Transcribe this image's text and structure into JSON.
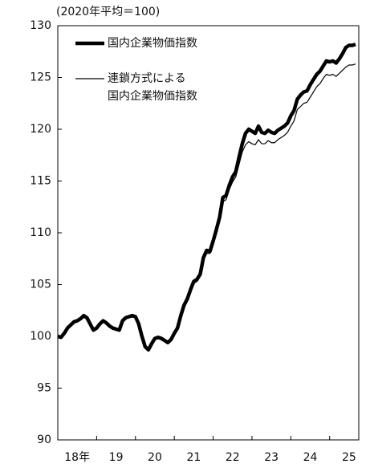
{
  "chart_data": {
    "type": "line",
    "subtitle": "(2020年平均＝100)",
    "x": [
      2018.0,
      2018.083,
      2018.167,
      2018.25,
      2018.333,
      2018.417,
      2018.5,
      2018.583,
      2018.667,
      2018.75,
      2018.833,
      2018.917,
      2019.0,
      2019.083,
      2019.167,
      2019.25,
      2019.333,
      2019.417,
      2019.5,
      2019.583,
      2019.667,
      2019.75,
      2019.833,
      2019.917,
      2020.0,
      2020.083,
      2020.167,
      2020.25,
      2020.333,
      2020.417,
      2020.5,
      2020.583,
      2020.667,
      2020.75,
      2020.833,
      2020.917,
      2021.0,
      2021.083,
      2021.167,
      2021.25,
      2021.333,
      2021.417,
      2021.5,
      2021.583,
      2021.667,
      2021.75,
      2021.833,
      2021.917,
      2022.0,
      2022.083,
      2022.167,
      2022.25,
      2022.333,
      2022.417,
      2022.5,
      2022.583,
      2022.667,
      2022.75,
      2022.833,
      2022.917,
      2023.0,
      2023.083,
      2023.167,
      2023.25,
      2023.333,
      2023.417,
      2023.5,
      2023.583,
      2023.667,
      2023.75,
      2023.833,
      2023.917,
      2024.0,
      2024.083,
      2024.167,
      2024.25,
      2024.333,
      2024.417,
      2024.5,
      2024.583,
      2024.667,
      2024.75,
      2024.833,
      2024.917,
      2025.0,
      2025.083,
      2025.167,
      2025.25,
      2025.333,
      2025.417,
      2025.5,
      2025.583,
      2025.667
    ],
    "series": [
      {
        "name": "国内企業物価指数",
        "color": "#000000",
        "width": 4.5,
        "values": [
          100.0,
          99.9,
          100.3,
          100.8,
          101.1,
          101.4,
          101.5,
          101.7,
          102.0,
          101.8,
          101.2,
          100.6,
          100.8,
          101.2,
          101.5,
          101.3,
          101.0,
          100.8,
          100.7,
          100.6,
          101.5,
          101.8,
          101.9,
          102.0,
          101.9,
          101.2,
          100.0,
          99.0,
          98.7,
          99.3,
          99.8,
          99.9,
          99.8,
          99.6,
          99.4,
          99.7,
          100.3,
          100.8,
          102.0,
          103.0,
          103.6,
          104.5,
          105.3,
          105.5,
          106.0,
          107.6,
          108.3,
          108.2,
          109.2,
          110.3,
          111.5,
          113.4,
          113.6,
          114.6,
          115.4,
          115.9,
          117.3,
          118.6,
          119.6,
          120.0,
          119.8,
          119.6,
          120.3,
          119.7,
          119.6,
          119.9,
          119.7,
          119.6,
          119.9,
          120.1,
          120.3,
          120.6,
          121.3,
          121.8,
          122.9,
          123.3,
          123.6,
          123.7,
          124.3,
          124.8,
          125.3,
          125.6,
          126.1,
          126.6,
          126.5,
          126.6,
          126.4,
          126.8,
          127.3,
          127.9,
          128.1,
          128.1,
          128.2
        ]
      },
      {
        "name": "連鎖方式による\n国内企業物価指数",
        "color": "#000000",
        "width": 1.2,
        "values": [
          100.0,
          99.9,
          100.3,
          100.8,
          101.1,
          101.4,
          101.5,
          101.7,
          102.0,
          101.8,
          101.2,
          100.6,
          100.8,
          101.2,
          101.5,
          101.3,
          101.0,
          100.8,
          100.7,
          100.6,
          101.5,
          101.8,
          101.9,
          102.0,
          101.9,
          101.2,
          100.0,
          99.0,
          98.7,
          99.3,
          99.8,
          99.9,
          99.8,
          99.6,
          99.4,
          99.7,
          100.3,
          100.8,
          102.0,
          103.0,
          103.5,
          104.3,
          105.1,
          105.3,
          105.8,
          107.3,
          108.0,
          108.0,
          109.0,
          110.0,
          111.2,
          113.0,
          113.2,
          114.2,
          114.9,
          115.4,
          116.6,
          117.8,
          118.5,
          118.8,
          118.6,
          118.5,
          119.0,
          118.6,
          118.6,
          118.9,
          118.7,
          118.7,
          119.0,
          119.2,
          119.4,
          119.7,
          120.3,
          120.8,
          121.9,
          122.2,
          122.5,
          122.6,
          123.1,
          123.6,
          124.1,
          124.4,
          124.9,
          125.3,
          125.2,
          125.3,
          125.1,
          125.4,
          125.7,
          126.0,
          126.2,
          126.2,
          126.3
        ]
      }
    ],
    "xlim": [
      2018.0,
      2025.75
    ],
    "xticks": [
      2019,
      2020,
      2021,
      2022,
      2023,
      2024,
      2025
    ],
    "xlabels": [
      {
        "value": 2018.5,
        "label": "18年"
      },
      {
        "value": 2019.5,
        "label": "19"
      },
      {
        "value": 2020.5,
        "label": "20"
      },
      {
        "value": 2021.5,
        "label": "21"
      },
      {
        "value": 2022.5,
        "label": "22"
      },
      {
        "value": 2023.5,
        "label": "23"
      },
      {
        "value": 2024.5,
        "label": "24"
      },
      {
        "value": 2025.5,
        "label": "25"
      }
    ],
    "ylim": [
      90,
      130
    ],
    "yticks": [
      90,
      95,
      100,
      105,
      110,
      115,
      120,
      125,
      130
    ],
    "legend": "upper left"
  }
}
